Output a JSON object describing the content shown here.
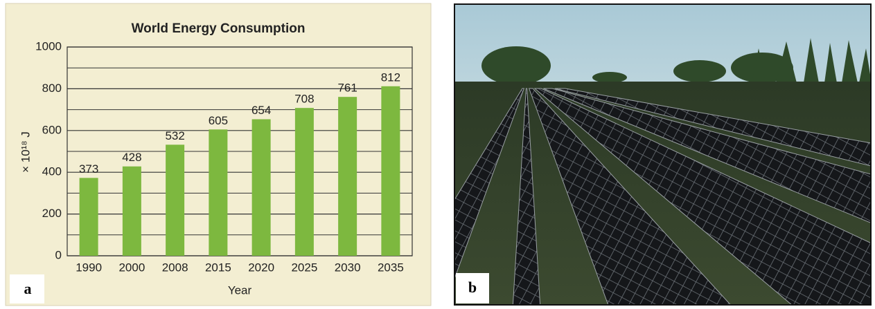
{
  "chart_data": {
    "type": "bar",
    "title": "World Energy Consumption",
    "categories": [
      "1990",
      "2000",
      "2008",
      "2015",
      "2020",
      "2025",
      "2030",
      "2035"
    ],
    "values": [
      373,
      428,
      532,
      605,
      654,
      708,
      761,
      812
    ],
    "color": "#7db83f",
    "xlabel": "Year",
    "ylabel": "× 10¹⁸ J",
    "ylim": [
      0,
      1000
    ],
    "yticks": [
      0,
      200,
      400,
      600,
      800,
      1000
    ],
    "minor_grid": [
      100,
      300,
      500,
      700,
      900
    ],
    "grid": true
  },
  "panel_labels": [
    "a",
    "b"
  ]
}
